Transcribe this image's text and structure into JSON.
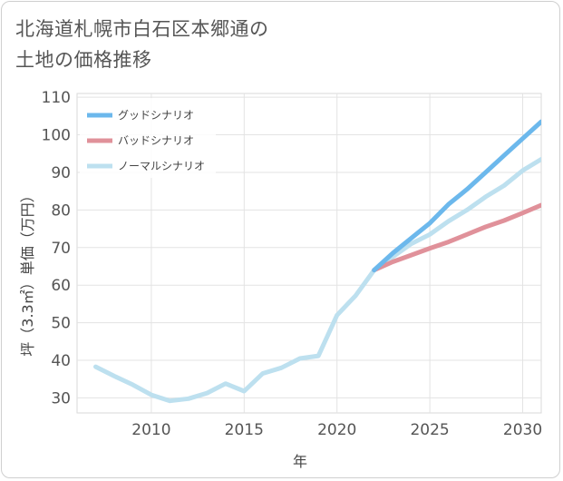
{
  "title_lines": [
    "北海道札幌市白石区本郷通の",
    "土地の価格推移"
  ],
  "chart_data": {
    "type": "line",
    "title": "北海道札幌市白石区本郷通の土地の価格推移",
    "xlabel": "年",
    "ylabel": "坪（3.3㎡）単価（万円）",
    "xlim": [
      2006,
      2031
    ],
    "ylim": [
      26,
      111
    ],
    "xticks": [
      2010,
      2015,
      2020,
      2025,
      2030
    ],
    "yticks": [
      30,
      40,
      50,
      60,
      70,
      80,
      90,
      100,
      110
    ],
    "grid": true,
    "legend_position": "top-left",
    "series": [
      {
        "name": "グッドシナリオ",
        "color": "#6cb8ec",
        "x": [
          2022,
          2023,
          2024,
          2025,
          2026,
          2027,
          2028,
          2029,
          2030,
          2031
        ],
        "y": [
          64,
          68.5,
          72.5,
          76.5,
          81.5,
          85.5,
          90,
          94.5,
          99,
          103.5
        ]
      },
      {
        "name": "バッドシナリオ",
        "color": "#e0919a",
        "x": [
          2022,
          2023,
          2024,
          2025,
          2026,
          2027,
          2028,
          2029,
          2030,
          2031
        ],
        "y": [
          64,
          66.2,
          68,
          69.8,
          71.5,
          73.5,
          75.5,
          77.2,
          79.2,
          81.3
        ]
      },
      {
        "name": "ノーマルシナリオ",
        "color": "#bde0ef",
        "x": [
          2007,
          2008,
          2009,
          2010,
          2011,
          2012,
          2013,
          2014,
          2015,
          2016,
          2017,
          2018,
          2019,
          2020,
          2021,
          2022,
          2023,
          2024,
          2025,
          2026,
          2027,
          2028,
          2029,
          2030,
          2031
        ],
        "y": [
          38.3,
          35.8,
          33.5,
          30.8,
          29.2,
          29.8,
          31.3,
          33.8,
          31.8,
          36.5,
          38,
          40.5,
          41.2,
          52,
          57.2,
          64,
          67.5,
          71,
          73.5,
          77,
          80,
          83.5,
          86.5,
          90.5,
          93.5
        ]
      }
    ]
  }
}
